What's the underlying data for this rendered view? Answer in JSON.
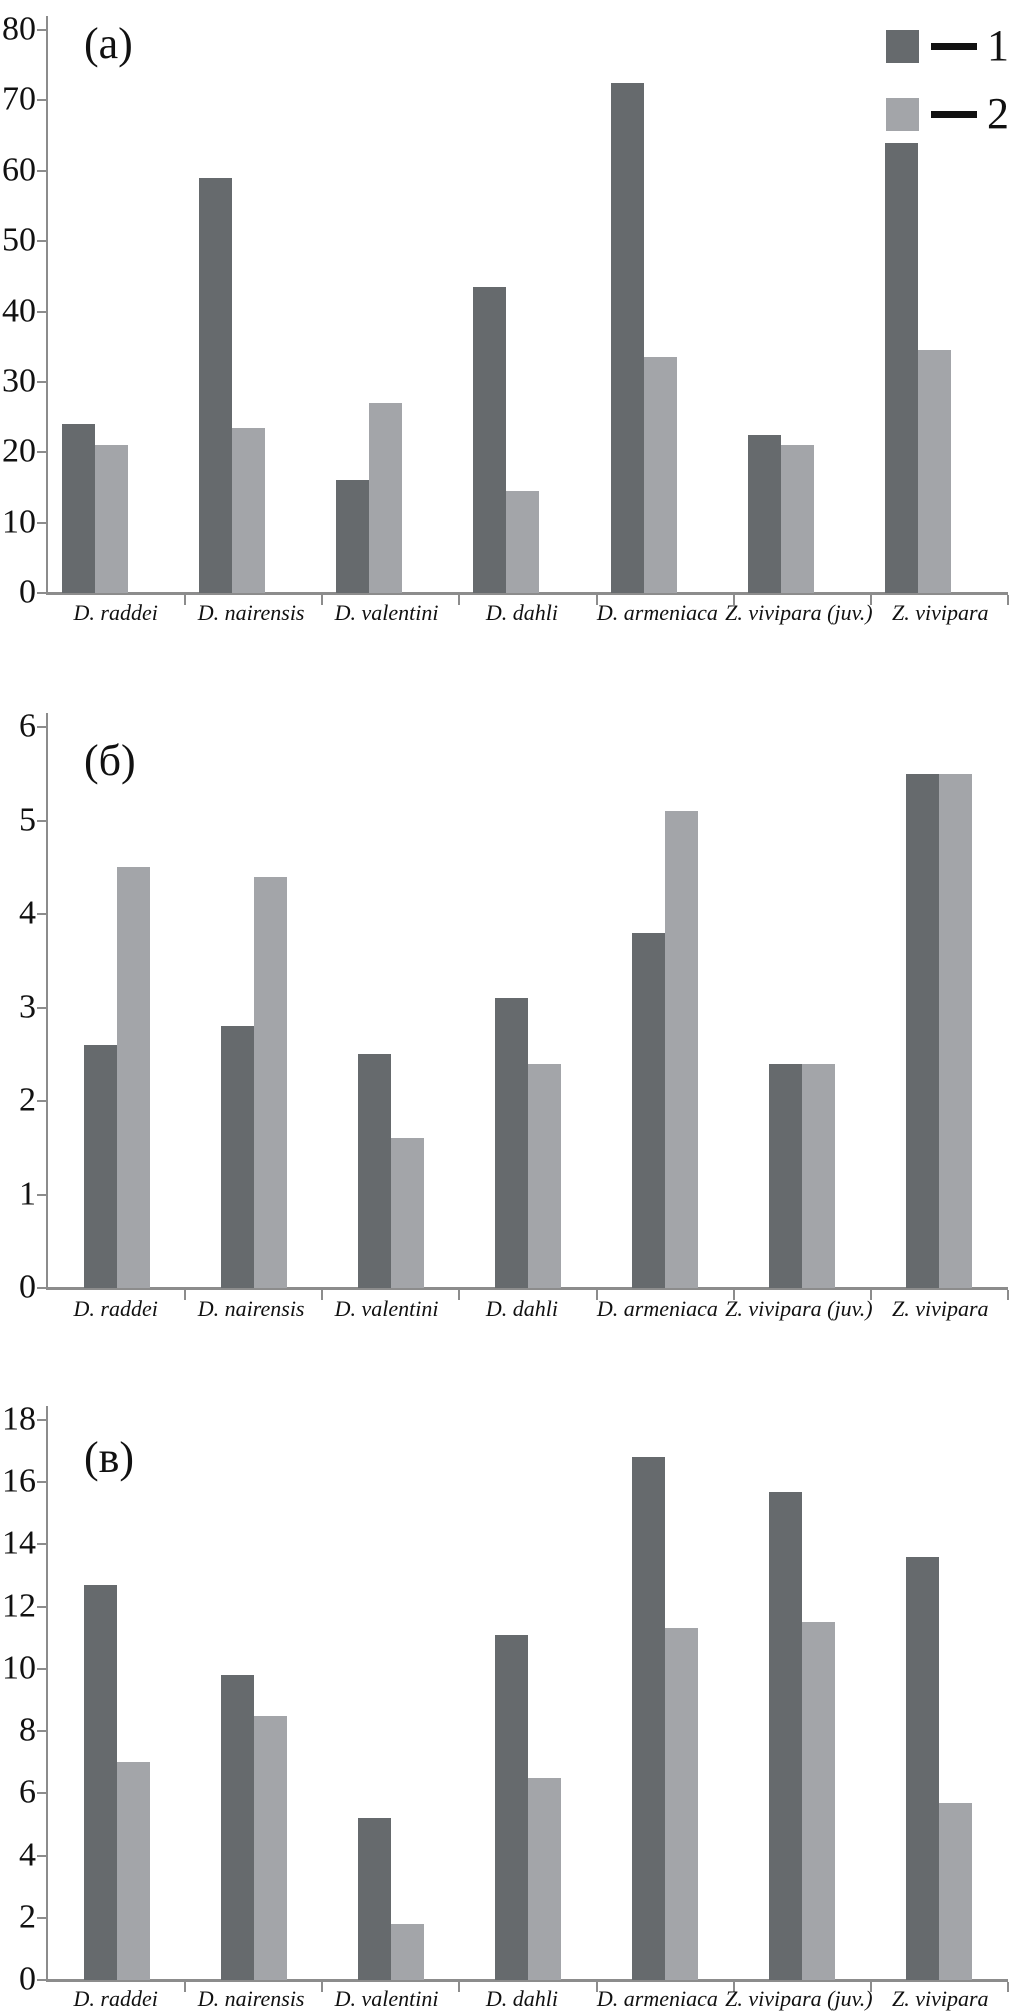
{
  "colors": {
    "series1": "#666a6d",
    "series2": "#a3a5a9",
    "axis": "#8c8c8c",
    "text": "#111111"
  },
  "chart_data": [
    {
      "type": "bar",
      "panel_label": "(а)",
      "categories": [
        "D. raddei",
        "D. nairensis",
        "D. valentini",
        "D. dahli",
        "D. armeniaca",
        "Z. vivipara (juv.)",
        "Z. vivipara"
      ],
      "series": [
        {
          "name": "1",
          "color": "#666a6d",
          "values": [
            24,
            59,
            16,
            43.5,
            72.5,
            22.5,
            64
          ]
        },
        {
          "name": "2",
          "color": "#a3a5a9",
          "values": [
            21,
            23.5,
            27,
            14.5,
            33.5,
            21,
            34.5
          ]
        }
      ],
      "ylim": [
        0,
        80
      ],
      "yticks": [
        0,
        10,
        20,
        30,
        40,
        50,
        60,
        70,
        80
      ],
      "grid": false,
      "legend": true,
      "legend_position": "top-right",
      "pair_align": "left"
    },
    {
      "type": "bar",
      "panel_label": "(б)",
      "categories": [
        "D. raddei",
        "D. nairensis",
        "D. valentini",
        "D. dahli",
        "D. armeniaca",
        "Z. vivipara (juv.)",
        "Z. vivipara"
      ],
      "series": [
        {
          "name": "1",
          "color": "#666a6d",
          "values": [
            2.6,
            2.8,
            2.5,
            3.1,
            3.8,
            2.4,
            5.5
          ]
        },
        {
          "name": "2",
          "color": "#a3a5a9",
          "values": [
            4.5,
            4.4,
            1.6,
            2.4,
            5.1,
            2.4,
            5.5
          ]
        }
      ],
      "ylim": [
        0,
        6
      ],
      "yticks": [
        0,
        1,
        2,
        3,
        4,
        5,
        6
      ],
      "grid": false,
      "legend": false,
      "pair_align": "center"
    },
    {
      "type": "bar",
      "panel_label": "(в)",
      "categories": [
        "D. raddei",
        "D. nairensis",
        "D. valentini",
        "D. dahli",
        "D. armeniaca",
        "Z. vivipara (juv.)",
        "Z. vivipara"
      ],
      "series": [
        {
          "name": "1",
          "color": "#666a6d",
          "values": [
            12.7,
            9.8,
            5.2,
            11.1,
            16.8,
            15.7,
            13.6
          ]
        },
        {
          "name": "2",
          "color": "#a3a5a9",
          "values": [
            7.0,
            8.5,
            1.8,
            6.5,
            11.3,
            11.5,
            5.7
          ]
        }
      ],
      "ylim": [
        0,
        18
      ],
      "yticks": [
        0,
        2,
        4,
        6,
        8,
        10,
        12,
        14,
        16,
        18
      ],
      "grid": false,
      "legend": false,
      "pair_align": "center"
    }
  ],
  "legend": {
    "entries": [
      {
        "label": "1",
        "color": "#666a6d"
      },
      {
        "label": "2",
        "color": "#a3a5a9"
      }
    ]
  }
}
